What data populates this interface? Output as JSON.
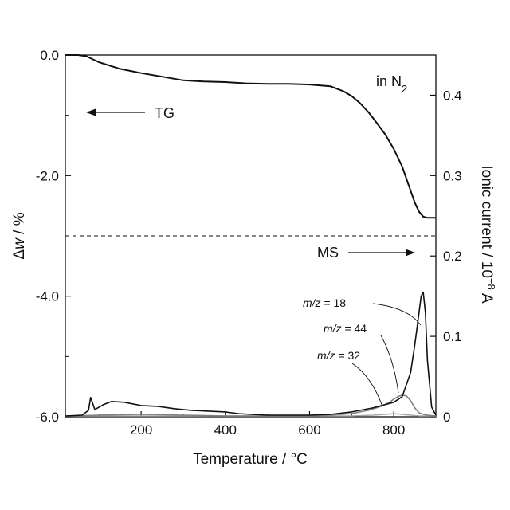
{
  "chart_data": {
    "type": "line",
    "title": "",
    "xlabel": "Temperature / °C",
    "ylabel_left_prefix": "Δ",
    "ylabel_left_var": "w",
    "ylabel_left_suffix": " / %",
    "ylabel_right": "Ionic current / 10",
    "ylabel_right_exp": "−8",
    "ylabel_right_unit": " A",
    "xlim": [
      20,
      900
    ],
    "xticks": [
      200,
      400,
      600,
      800
    ],
    "xtick_labels": [
      "200",
      "400",
      "600",
      "800"
    ],
    "ylim_left": [
      -6.0,
      0.0
    ],
    "yticks_left": [
      0.0,
      -2.0,
      -4.0,
      -6.0
    ],
    "ytick_labels_left": [
      "0.0",
      "-2.0",
      "-4.0",
      "-6.0"
    ],
    "ylim_right": [
      0,
      0.45
    ],
    "yticks_right": [
      0.4,
      0.3,
      0.2,
      0.1,
      0
    ],
    "ytick_labels_right": [
      "0.4",
      "0.3",
      "0.2",
      "0.1",
      "0"
    ],
    "grid": false,
    "series": [
      {
        "name": "TG",
        "axis": "left",
        "color": "#111111",
        "x": [
          20,
          50,
          70,
          100,
          150,
          200,
          250,
          300,
          350,
          400,
          450,
          500,
          550,
          600,
          650,
          680,
          700,
          720,
          740,
          760,
          780,
          800,
          820,
          840,
          850,
          860,
          870,
          880,
          890,
          900
        ],
        "y": [
          0.0,
          0.0,
          -0.02,
          -0.12,
          -0.23,
          -0.3,
          -0.36,
          -0.42,
          -0.44,
          -0.45,
          -0.47,
          -0.48,
          -0.48,
          -0.49,
          -0.52,
          -0.6,
          -0.68,
          -0.8,
          -0.95,
          -1.13,
          -1.32,
          -1.56,
          -1.85,
          -2.25,
          -2.45,
          -2.6,
          -2.68,
          -2.7,
          -2.7,
          -2.7
        ]
      },
      {
        "name": "m/z = 18",
        "axis": "right",
        "color": "#111111",
        "x": [
          20,
          60,
          75,
          80,
          90,
          110,
          130,
          160,
          200,
          240,
          280,
          320,
          360,
          400,
          430,
          460,
          500,
          550,
          600,
          650,
          700,
          750,
          800,
          820,
          840,
          850,
          860,
          865,
          870,
          875,
          880,
          890,
          900
        ],
        "y": [
          0.001,
          0.002,
          0.008,
          0.024,
          0.009,
          0.015,
          0.019,
          0.018,
          0.014,
          0.013,
          0.01,
          0.008,
          0.007,
          0.006,
          0.004,
          0.003,
          0.002,
          0.002,
          0.002,
          0.003,
          0.006,
          0.011,
          0.018,
          0.025,
          0.055,
          0.09,
          0.13,
          0.15,
          0.155,
          0.13,
          0.07,
          0.012,
          0.002
        ]
      },
      {
        "name": "m/z = 44",
        "axis": "right",
        "color": "#808080",
        "x": [
          20,
          100,
          200,
          300,
          400,
          500,
          600,
          650,
          700,
          740,
          770,
          790,
          800,
          810,
          820,
          830,
          840,
          850,
          860,
          870,
          880,
          900
        ],
        "y": [
          0.001,
          0.002,
          0.003,
          0.002,
          0.001,
          0.001,
          0.001,
          0.002,
          0.004,
          0.008,
          0.013,
          0.018,
          0.022,
          0.025,
          0.027,
          0.026,
          0.02,
          0.011,
          0.005,
          0.003,
          0.002,
          0.001
        ]
      },
      {
        "name": "m/z = 32",
        "axis": "right",
        "color": "#a8a8a8",
        "x": [
          20,
          100,
          200,
          300,
          400,
          500,
          600,
          700,
          750,
          780,
          800,
          820,
          840,
          860,
          900
        ],
        "y": [
          0.001,
          0.001,
          0.001,
          0.001,
          0.001,
          0.001,
          0.001,
          0.001,
          0.002,
          0.003,
          0.004,
          0.003,
          0.002,
          0.001,
          0.001
        ]
      }
    ],
    "separator": {
      "style": "dashed",
      "left_y": -3.0
    },
    "annotations": {
      "atmosphere_prefix": "in N",
      "atmosphere_sub": "2",
      "tg_label": "TG",
      "ms_label": "MS",
      "mz_labels": [
        {
          "var": "m/z",
          "value": " = 18"
        },
        {
          "var": "m/z",
          "value": " = 44"
        },
        {
          "var": "m/z",
          "value": " = 32"
        }
      ]
    }
  }
}
